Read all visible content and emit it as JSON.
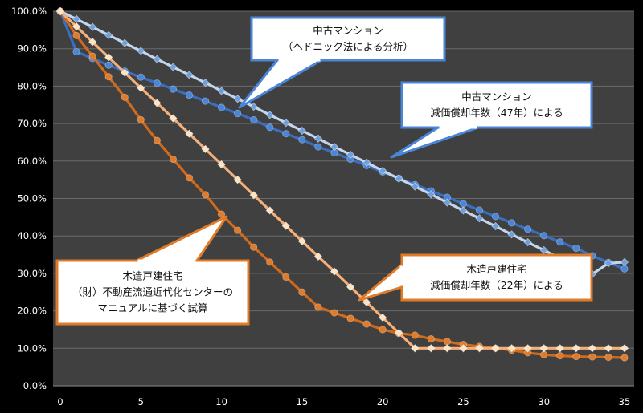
{
  "chart_data": {
    "type": "line",
    "xlim": [
      0,
      35
    ],
    "ylim": [
      0,
      100
    ],
    "x_ticks": [
      0,
      5,
      10,
      15,
      20,
      25,
      30,
      35
    ],
    "y_ticks": [
      "0.0%",
      "10.0%",
      "20.0%",
      "30.0%",
      "40.0%",
      "50.0%",
      "60.0%",
      "70.0%",
      "80.0%",
      "90.0%",
      "100.0%"
    ],
    "grid": "horizontal",
    "background": "#404040",
    "x": [
      0,
      1,
      2,
      3,
      4,
      5,
      6,
      7,
      8,
      9,
      10,
      11,
      12,
      13,
      14,
      15,
      16,
      17,
      18,
      19,
      20,
      21,
      22,
      23,
      24,
      25,
      26,
      27,
      28,
      29,
      30,
      31,
      32,
      33,
      34,
      35
    ],
    "series": [
      {
        "id": "mansion_hedonic",
        "color": "#4a86d8",
        "line_color": "#3a6fc0",
        "marker": "circle",
        "values": [
          100,
          89.2,
          87.4,
          85.6,
          84.0,
          82.4,
          80.8,
          79.2,
          77.6,
          76.0,
          74.3,
          72.7,
          71.0,
          69.0,
          67.3,
          65.7,
          63.8,
          62.2,
          60.5,
          58.8,
          57.1,
          55.4,
          53.7,
          52.0,
          50.3,
          48.6,
          46.9,
          45.2,
          43.5,
          41.8,
          40.1,
          38.4,
          36.7,
          34.7,
          32.9,
          31.2
        ]
      },
      {
        "id": "mansion_depreciation",
        "color": "#6fa0dd",
        "line_color": "#c3d6ee",
        "marker": "diamond",
        "values": [
          100,
          97.9,
          95.8,
          93.6,
          91.5,
          89.4,
          87.2,
          85.1,
          83.0,
          80.9,
          78.7,
          76.6,
          74.5,
          72.3,
          70.2,
          68.1,
          66.0,
          63.8,
          61.7,
          59.6,
          57.4,
          55.3,
          53.2,
          51.1,
          48.9,
          46.8,
          44.7,
          42.6,
          40.4,
          38.3,
          36.2,
          34.0,
          31.9,
          29.8,
          32.7,
          33.0
        ]
      },
      {
        "id": "wood_survey",
        "color": "#e07b2a",
        "line_color": "#d06a1c",
        "marker": "circle",
        "values": [
          100,
          93.5,
          88.0,
          82.5,
          77.0,
          71.0,
          65.5,
          60.5,
          55.5,
          51.0,
          45.8,
          41.5,
          37.0,
          33.0,
          29.0,
          25.0,
          21.0,
          19.5,
          18.0,
          16.5,
          15.0,
          14.0,
          13.5,
          12.5,
          11.8,
          11.0,
          10.5,
          10.0,
          9.5,
          8.8,
          8.3,
          8.0,
          7.8,
          7.7,
          7.6,
          7.5
        ]
      },
      {
        "id": "wood_depreciation",
        "color": "#fbe3c4",
        "line_color": "#f4b07a",
        "marker": "diamond",
        "values": [
          100,
          95.9,
          91.8,
          87.7,
          83.6,
          79.5,
          75.5,
          71.4,
          67.3,
          63.2,
          59.1,
          55.0,
          50.9,
          46.8,
          42.7,
          38.6,
          34.5,
          30.5,
          26.4,
          22.3,
          18.2,
          14.1,
          10.0,
          10.0,
          10.0,
          10.0,
          10.0,
          10.0,
          10.0,
          10.0,
          10.0,
          10.0,
          10.0,
          10.0,
          10.0,
          10.0
        ]
      }
    ],
    "annotations": [
      {
        "id": "mansion_hedonic_note",
        "lines": [
          "中古マンション",
          "（ヘドニック法による分析）"
        ],
        "border": "#4a86d8"
      },
      {
        "id": "mansion_depr_note",
        "lines": [
          "中古マンション",
          "減価償却年数（47年）による"
        ],
        "border": "#4a86d8"
      },
      {
        "id": "wood_survey_note",
        "lines": [
          "木造戸建住宅",
          "（財）不動産流通近代化センターの",
          "マニュアルに基づく試算"
        ],
        "border": "#e07b2a"
      },
      {
        "id": "wood_depr_note",
        "lines": [
          "木造戸建住宅",
          "減価償却年数（22年）による"
        ],
        "border": "#e07b2a"
      }
    ]
  }
}
